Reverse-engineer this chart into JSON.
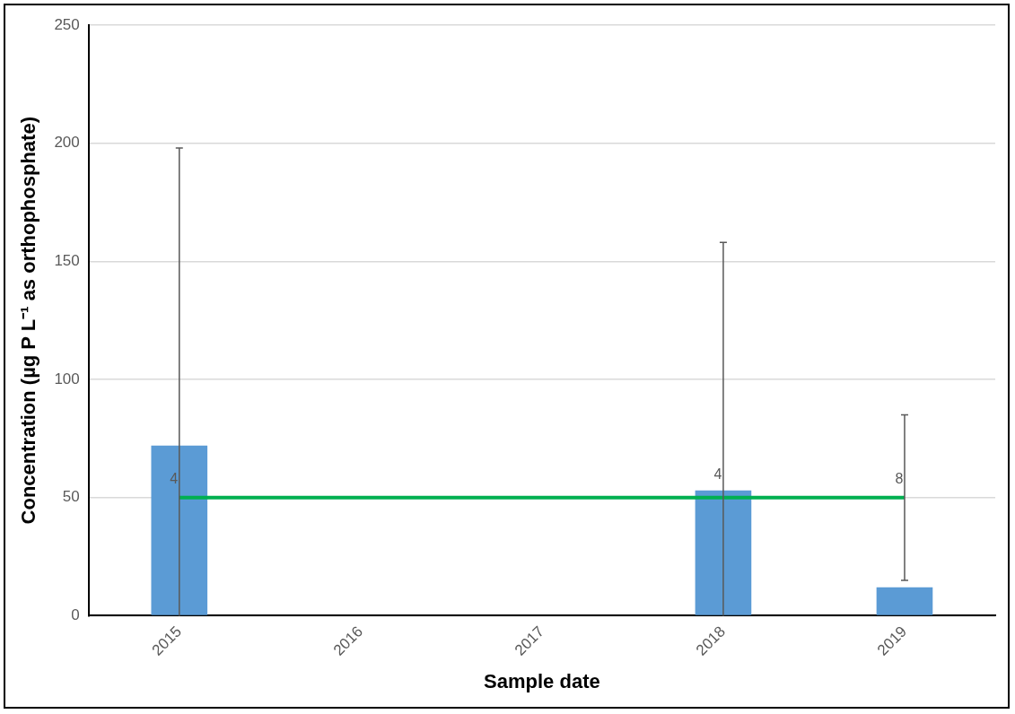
{
  "chart_data": {
    "type": "bar",
    "xlabel": "Sample date",
    "ylabel": "Concentration (µg P L⁻¹ as orthophosphate)",
    "categories": [
      "2015",
      "2016",
      "2017",
      "2018",
      "2019"
    ],
    "series": [
      {
        "color": "#5b9bd5",
        "values": [
          72,
          null,
          null,
          53,
          12
        ],
        "errors": [
          [
            0,
            198
          ],
          null,
          null,
          [
            0,
            158
          ],
          [
            15,
            85
          ]
        ]
      },
      {
        "type": "line",
        "color": "#00b050",
        "values": [
          50,
          50,
          50,
          50,
          50
        ],
        "marker": "none"
      }
    ],
    "annotations": [
      {
        "text": "4",
        "x": "2015",
        "y": 56
      },
      {
        "text": "4",
        "x": "2018",
        "y": 58
      },
      {
        "text": "8",
        "x": "2019",
        "y": 56
      }
    ],
    "ylim": [
      0,
      250
    ],
    "yticks": [
      0,
      50,
      100,
      150,
      200,
      250
    ],
    "grid": "y",
    "legend": false
  }
}
